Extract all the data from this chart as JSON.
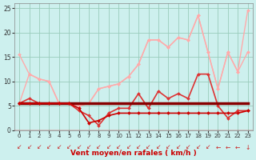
{
  "background_color": "#cdf0ee",
  "grid_color": "#99ccbb",
  "xlabel": "Vent moyen/en rafales ( km/h )",
  "xlim": [
    -0.5,
    23.5
  ],
  "ylim": [
    0,
    26
  ],
  "yticks": [
    0,
    5,
    10,
    15,
    20,
    25
  ],
  "xticks": [
    0,
    1,
    2,
    3,
    4,
    5,
    6,
    7,
    8,
    9,
    10,
    11,
    12,
    13,
    14,
    15,
    16,
    17,
    18,
    19,
    20,
    21,
    22,
    23
  ],
  "series": [
    {
      "x": [
        0,
        1,
        2,
        3,
        4,
        5,
        6,
        7,
        8,
        9,
        10,
        11,
        12,
        13,
        14,
        15,
        16,
        17,
        18,
        19,
        20,
        21,
        22,
        23
      ],
      "y": [
        15.5,
        11.5,
        10.5,
        10.0,
        5.5,
        5.5,
        5.0,
        5.5,
        8.5,
        9.0,
        9.5,
        11.0,
        13.5,
        18.5,
        18.5,
        17.0,
        19.0,
        18.5,
        23.5,
        16.0,
        8.5,
        16.0,
        12.0,
        24.5
      ],
      "color": "#ffaaaa",
      "lw": 1.0,
      "marker": "D",
      "ms": 2.0
    },
    {
      "x": [
        0,
        1,
        2,
        3,
        4,
        5,
        6,
        7,
        8,
        9,
        10,
        11,
        12,
        13,
        14,
        15,
        16,
        17,
        18,
        19,
        20,
        21,
        22,
        23
      ],
      "y": [
        5.5,
        11.5,
        10.5,
        10.0,
        5.5,
        5.5,
        5.0,
        5.5,
        8.5,
        9.0,
        9.5,
        11.0,
        13.5,
        18.5,
        18.5,
        17.0,
        19.0,
        18.5,
        23.5,
        16.0,
        8.5,
        16.0,
        12.0,
        16.0
      ],
      "color": "#ffaaaa",
      "lw": 1.0,
      "marker": "D",
      "ms": 2.0
    },
    {
      "x": [
        0,
        1,
        2,
        3,
        4,
        5,
        6,
        7,
        8,
        9,
        10,
        11,
        12,
        13,
        14,
        15,
        16,
        17,
        18,
        19,
        20,
        21,
        22,
        23
      ],
      "y": [
        5.5,
        6.5,
        5.5,
        5.5,
        5.5,
        5.5,
        4.0,
        3.0,
        1.0,
        3.5,
        4.5,
        4.5,
        7.5,
        4.5,
        8.0,
        6.5,
        7.5,
        6.5,
        11.5,
        11.5,
        5.0,
        2.5,
        4.0,
        4.0
      ],
      "color": "#dd3333",
      "lw": 1.2,
      "marker": "D",
      "ms": 2.0
    },
    {
      "x": [
        0,
        1,
        2,
        3,
        4,
        5,
        6,
        7,
        8,
        9,
        10,
        11,
        12,
        13,
        14,
        15,
        16,
        17,
        18,
        19,
        20,
        21,
        22,
        23
      ],
      "y": [
        5.5,
        5.5,
        5.5,
        5.5,
        5.5,
        5.5,
        5.5,
        5.5,
        5.5,
        5.5,
        5.5,
        5.5,
        5.5,
        5.5,
        5.5,
        5.5,
        5.5,
        5.5,
        5.5,
        5.5,
        5.5,
        5.5,
        5.5,
        5.5
      ],
      "color": "#880000",
      "lw": 2.5,
      "marker": null,
      "ms": 0
    },
    {
      "x": [
        0,
        1,
        2,
        3,
        4,
        5,
        6,
        7,
        8,
        9,
        10,
        11,
        12,
        13,
        14,
        15,
        16,
        17,
        18,
        19,
        20,
        21,
        22,
        23
      ],
      "y": [
        5.5,
        5.5,
        5.5,
        5.5,
        5.5,
        5.5,
        4.5,
        1.5,
        2.0,
        3.0,
        3.5,
        3.5,
        3.5,
        3.5,
        3.5,
        3.5,
        3.5,
        3.5,
        3.5,
        3.5,
        3.5,
        3.5,
        3.5,
        4.0
      ],
      "color": "#cc0000",
      "lw": 1.2,
      "marker": "D",
      "ms": 2.0
    }
  ],
  "wind_arrow_angles": [
    225,
    225,
    225,
    225,
    225,
    225,
    225,
    225,
    225,
    225,
    225,
    225,
    225,
    225,
    225,
    225,
    225,
    225,
    225,
    225,
    270,
    270,
    270,
    0
  ],
  "arrow_color": "#cc2222",
  "bottom_line_color": "#cc0000",
  "xlabel_color": "#cc0000",
  "xlabel_fontsize": 6.5,
  "xlabel_fontweight": "bold",
  "tick_fontsize": 5.0,
  "ytick_fontsize": 5.5,
  "figsize": [
    3.2,
    2.0
  ],
  "dpi": 100
}
